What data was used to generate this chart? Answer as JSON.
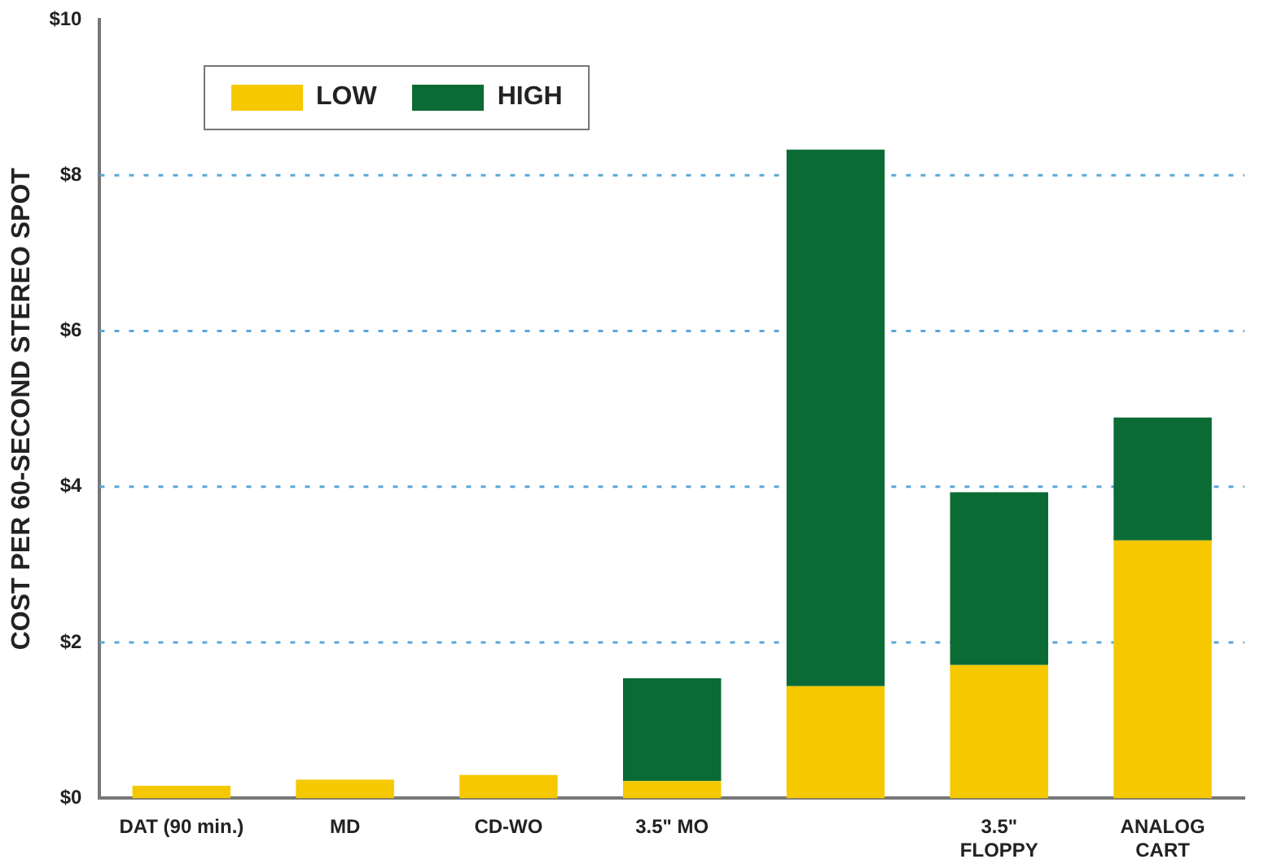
{
  "chart_data": {
    "type": "bar",
    "stacked": true,
    "ylabel": "COST PER 60-SECOND STEREO SPOT",
    "categories": [
      "DAT (90 min.)",
      "MD",
      "CD-WO",
      "3.5\" MO",
      null,
      "3.5\"\nFLOPPY",
      "ANALOG\nCART"
    ],
    "series": [
      {
        "name": "LOW",
        "color": "#f5c800",
        "values": [
          0.16,
          0.24,
          0.3,
          0.22,
          1.44,
          1.71,
          3.31
        ]
      },
      {
        "name": "HIGH",
        "color": "#0a6b35",
        "values": [
          null,
          null,
          null,
          1.32,
          6.89,
          2.22,
          1.58
        ]
      }
    ],
    "ylim": [
      0,
      10
    ],
    "yticks": [
      {
        "value": 0,
        "label": "$0"
      },
      {
        "value": 2,
        "label": "$2"
      },
      {
        "value": 4,
        "label": "$4"
      },
      {
        "value": 6,
        "label": "$6"
      },
      {
        "value": 8,
        "label": "$8"
      },
      {
        "value": 10,
        "label": "$10"
      }
    ],
    "grid": "y",
    "legend": "top left"
  }
}
